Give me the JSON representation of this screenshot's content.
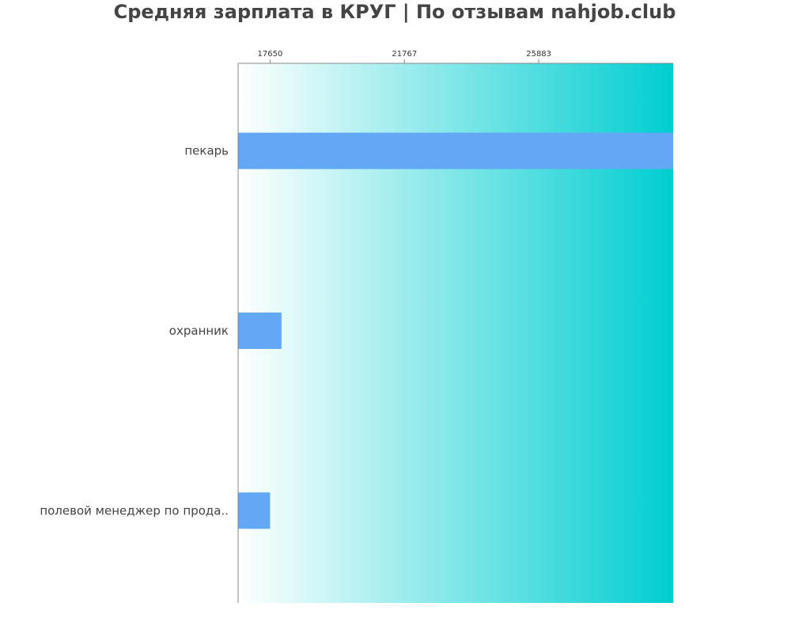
{
  "chart_data": {
    "type": "bar",
    "orientation": "horizontal",
    "title": "Средняя зарплата в КРУГ | По отзывам nahjob.club",
    "categories": [
      "пекарь",
      "охранник",
      "полевой менеджер по прода.."
    ],
    "values": [
      30000,
      18000,
      17650
    ],
    "xticks": [
      17650,
      21767,
      25883
    ],
    "xlim": [
      16670,
      30000
    ],
    "xlabel": "",
    "ylabel": "",
    "grid": false,
    "legend": "none",
    "bar_color": "#63A8F2",
    "background_gradient": [
      "#FFFFFF",
      "#00CED1"
    ],
    "axis_color": "#888888"
  }
}
